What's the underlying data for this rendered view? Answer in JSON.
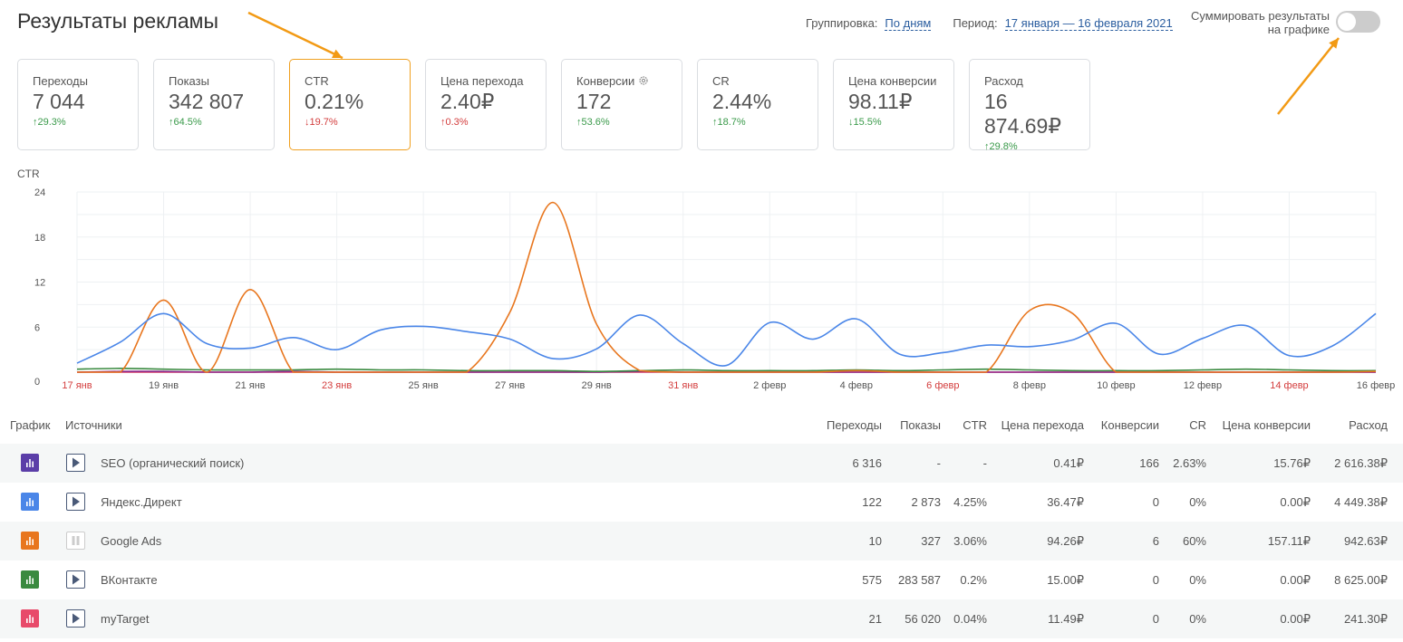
{
  "page": {
    "title": "Результаты рекламы"
  },
  "header": {
    "grouping_label": "Группировка:",
    "grouping_value": "По дням",
    "period_label": "Период:",
    "period_value": "17 января — 16 февраля 2021",
    "sum_toggle_line1": "Суммировать результаты",
    "sum_toggle_line2": "на графике",
    "sum_toggle_on": false
  },
  "metrics": [
    {
      "label": "Переходы",
      "value": "7 044",
      "change": "29.3%",
      "dir": "up",
      "tone": "green",
      "active": false,
      "gear": false
    },
    {
      "label": "Показы",
      "value": "342 807",
      "change": "64.5%",
      "dir": "up",
      "tone": "green",
      "active": false,
      "gear": false
    },
    {
      "label": "CTR",
      "value": "0.21%",
      "change": "19.7%",
      "dir": "down",
      "tone": "red",
      "active": true,
      "gear": false
    },
    {
      "label": "Цена перехода",
      "value": "2.40₽",
      "change": "0.3%",
      "dir": "up",
      "tone": "red",
      "active": false,
      "gear": false
    },
    {
      "label": "Конверсии",
      "value": "172",
      "change": "53.6%",
      "dir": "up",
      "tone": "green",
      "active": false,
      "gear": true
    },
    {
      "label": "CR",
      "value": "2.44%",
      "change": "18.7%",
      "dir": "up",
      "tone": "green",
      "active": false,
      "gear": false
    },
    {
      "label": "Цена конверсии",
      "value": "98.11₽",
      "change": "15.5%",
      "dir": "down",
      "tone": "green",
      "active": false,
      "gear": false
    },
    {
      "label": "Расход",
      "value": "16 874.69₽",
      "change": "29.8%",
      "dir": "up",
      "tone": "green",
      "active": false,
      "gear": false
    }
  ],
  "chart_label": "CTR",
  "chart_data": {
    "type": "line",
    "ylabel": "CTR",
    "ylim": [
      0,
      24
    ],
    "yticks": [
      "0",
      "6",
      "12",
      "18",
      "24"
    ],
    "x": [
      "17 янв",
      "18 янв",
      "19 янв",
      "20 янв",
      "21 янв",
      "22 янв",
      "23 янв",
      "24 янв",
      "25 янв",
      "26 янв",
      "27 янв",
      "28 янв",
      "29 янв",
      "30 янв",
      "31 янв",
      "1 февр",
      "2 февр",
      "3 февр",
      "4 февр",
      "5 февр",
      "6 февр",
      "7 февр",
      "8 февр",
      "9 февр",
      "10 февр",
      "11 февр",
      "12 февр",
      "13 февр",
      "14 февр",
      "15 февр",
      "16 февр"
    ],
    "xticks": [
      {
        "label": "17 янв",
        "weekend": true
      },
      {
        "label": "19 янв",
        "weekend": false
      },
      {
        "label": "21 янв",
        "weekend": false
      },
      {
        "label": "23 янв",
        "weekend": true
      },
      {
        "label": "25 янв",
        "weekend": false
      },
      {
        "label": "27 янв",
        "weekend": false
      },
      {
        "label": "29 янв",
        "weekend": false
      },
      {
        "label": "31 янв",
        "weekend": true
      },
      {
        "label": "2 февр",
        "weekend": false
      },
      {
        "label": "4 февр",
        "weekend": false
      },
      {
        "label": "6 февр",
        "weekend": true
      },
      {
        "label": "8 февр",
        "weekend": false
      },
      {
        "label": "10 февр",
        "weekend": false
      },
      {
        "label": "12 февр",
        "weekend": false
      },
      {
        "label": "14 февр",
        "weekend": true
      },
      {
        "label": "16 февр",
        "weekend": false
      }
    ],
    "series": [
      {
        "color": "#4a86e8",
        "values": [
          1.2,
          4,
          7.8,
          3.8,
          3.2,
          4.6,
          3,
          5.6,
          6.1,
          5.4,
          4.4,
          1.8,
          3.1,
          7.6,
          3.8,
          0.9,
          6.6,
          4.4,
          7.1,
          2.4,
          2.6,
          3.6,
          3.4,
          4.3,
          6.5,
          2.4,
          4.5,
          6.2,
          2.2,
          3.5,
          7.8
        ]
      },
      {
        "color": "#e8761e",
        "values": [
          0,
          0,
          9.6,
          0,
          11,
          0,
          0,
          0,
          0,
          0,
          8,
          22.6,
          6.4,
          0.2,
          0,
          0,
          0,
          0,
          0.2,
          0,
          0,
          0,
          8.2,
          7.8,
          0,
          0,
          0,
          0,
          0,
          0,
          0.1
        ]
      },
      {
        "color": "#3a8a40",
        "values": [
          0.4,
          0.5,
          0.4,
          0.3,
          0.3,
          0.3,
          0.4,
          0.3,
          0.3,
          0.2,
          0.2,
          0.2,
          0.1,
          0.2,
          0.3,
          0.2,
          0.2,
          0.2,
          0.3,
          0.2,
          0.3,
          0.4,
          0.3,
          0.2,
          0.2,
          0.2,
          0.3,
          0.4,
          0.3,
          0.2,
          0.2
        ]
      },
      {
        "color": "#8e2a8c",
        "values": [
          0,
          0.1,
          0.1,
          0,
          0,
          0.1,
          0,
          0,
          0,
          0,
          0,
          0,
          0,
          0.1,
          0,
          0,
          0,
          0,
          0,
          0,
          0,
          0,
          0,
          0,
          0,
          0,
          0,
          0,
          0,
          0,
          0
        ]
      },
      {
        "color": "#d63a64",
        "values": [
          0,
          0,
          0,
          0,
          0,
          0,
          0,
          0,
          0,
          0,
          0,
          0,
          0,
          0,
          0,
          0,
          0,
          0,
          0,
          0,
          0,
          0,
          0,
          0,
          0,
          0,
          0,
          0,
          0,
          0,
          0
        ]
      }
    ]
  },
  "table": {
    "headers": {
      "chart": "График",
      "source": "Источники",
      "clicks": "Переходы",
      "impressions": "Показы",
      "ctr": "CTR",
      "cpc": "Цена перехода",
      "conversions": "Конверсии",
      "cr": "CR",
      "cpa": "Цена конверсии",
      "spend": "Расход"
    },
    "rows": [
      {
        "color": "#5b3ea8",
        "name": "SEO (органический поиск)",
        "paused": false,
        "clicks": "6 316",
        "impressions": "-",
        "ctr": "-",
        "cpc": "0.41₽",
        "conversions": "166",
        "cr": "2.63%",
        "cpa": "15.76₽",
        "spend": "2 616.38₽"
      },
      {
        "color": "#4a86e8",
        "name": "Яндекс.Директ",
        "paused": false,
        "clicks": "122",
        "impressions": "2 873",
        "ctr": "4.25%",
        "cpc": "36.47₽",
        "conversions": "0",
        "cr": "0%",
        "cpa": "0.00₽",
        "spend": "4 449.38₽"
      },
      {
        "color": "#e8761e",
        "name": "Google Ads",
        "paused": true,
        "clicks": "10",
        "impressions": "327",
        "ctr": "3.06%",
        "cpc": "94.26₽",
        "conversions": "6",
        "cr": "60%",
        "cpa": "157.11₽",
        "spend": "942.63₽"
      },
      {
        "color": "#3a8a40",
        "name": "ВКонтакте",
        "paused": false,
        "clicks": "575",
        "impressions": "283 587",
        "ctr": "0.2%",
        "cpc": "15.00₽",
        "conversions": "0",
        "cr": "0%",
        "cpa": "0.00₽",
        "spend": "8 625.00₽"
      },
      {
        "color": "#e84a6a",
        "name": "myTarget",
        "paused": false,
        "clicks": "21",
        "impressions": "56 020",
        "ctr": "0.04%",
        "cpc": "11.49₽",
        "conversions": "0",
        "cr": "0%",
        "cpa": "0.00₽",
        "spend": "241.30₽"
      }
    ]
  },
  "annotation_color": "#f29a14"
}
